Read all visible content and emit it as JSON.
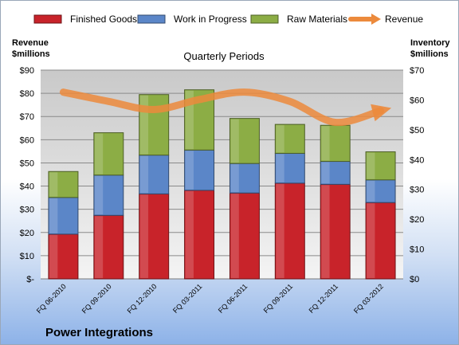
{
  "chart_data": {
    "type": "bar",
    "stacked": true,
    "title": "Quarterly Periods",
    "footer": "Power Integrations",
    "categories": [
      "FQ 06-2010",
      "FQ 09-2010",
      "FQ 12-2010",
      "FQ 03-2011",
      "FQ 06-2011",
      "FQ 09-2011",
      "FQ 12-2011",
      "FQ 03-2012"
    ],
    "ylabel_left": [
      "Revenue",
      "$millions"
    ],
    "ylabel_right": [
      "Inventory",
      "$millions"
    ],
    "left_axis": {
      "min": 0,
      "max": 90,
      "step": 10,
      "ticks": [
        "$-",
        "$10",
        "$20",
        "$30",
        "$40",
        "$50",
        "$60",
        "$70",
        "$80",
        "$90"
      ]
    },
    "right_axis": {
      "min": 0,
      "max": 70,
      "step": 10,
      "ticks": [
        "$0",
        "$10",
        "$20",
        "$30",
        "$40",
        "$50",
        "$60",
        "$70"
      ]
    },
    "series": [
      {
        "name": "Finished Goods",
        "axis": "right",
        "color": "#c8232a",
        "values": [
          15.0,
          21.3,
          28.5,
          29.7,
          28.8,
          32.1,
          31.7,
          25.6
        ]
      },
      {
        "name": "Work in Progress",
        "axis": "right",
        "color": "#5b86c8",
        "values": [
          12.3,
          13.5,
          13.0,
          13.5,
          9.9,
          10.0,
          7.7,
          7.6
        ]
      },
      {
        "name": "Raw Materials",
        "axis": "right",
        "color": "#8cad45",
        "values": [
          8.7,
          14.2,
          20.3,
          20.2,
          15.1,
          9.7,
          12.1,
          9.4
        ]
      },
      {
        "name": "Revenue",
        "axis": "left",
        "type": "line",
        "color": "#ec8a3c",
        "values": [
          80.5,
          76.5,
          73.0,
          77.3,
          80.5,
          76.5,
          67.5,
          72.5
        ]
      }
    ],
    "grid": true,
    "legend": "top"
  }
}
